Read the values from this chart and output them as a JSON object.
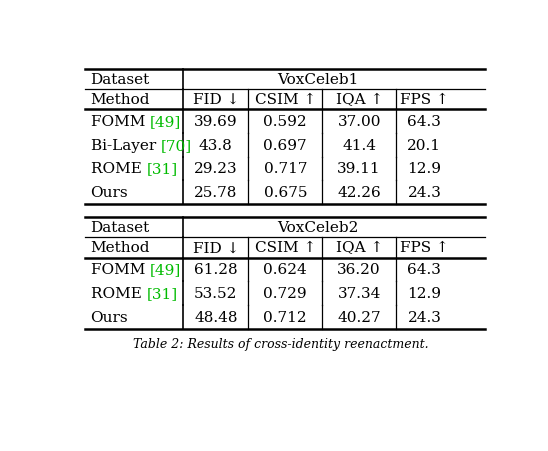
{
  "title": "Table 2: Results of cross-identity reenactment.",
  "background_color": "#ffffff",
  "table1": {
    "dataset": "VoxCeleb1",
    "rows": [
      [
        "FOMM ",
        "[49]",
        "39.69",
        "0.592",
        "37.00",
        "64.3"
      ],
      [
        "Bi-Layer ",
        "[70]",
        "43.8",
        "0.697",
        "41.4",
        "20.1"
      ],
      [
        "ROME ",
        "[31]",
        "29.23",
        "0.717",
        "39.11",
        "12.9"
      ],
      [
        "Ours",
        "",
        "25.78",
        "0.675",
        "42.26",
        "24.3"
      ]
    ]
  },
  "table2": {
    "dataset": "VoxCeleb2",
    "rows": [
      [
        "FOMM ",
        "[49]",
        "61.28",
        "0.624",
        "36.20",
        "64.3"
      ],
      [
        "ROME ",
        "[31]",
        "53.52",
        "0.729",
        "37.34",
        "12.9"
      ],
      [
        "Ours",
        "",
        "48.48",
        "0.712",
        "40.27",
        "24.3"
      ]
    ]
  },
  "headers": [
    "Method",
    "FID ↓",
    "CSIM ↑",
    "IQA ↑",
    "FPS ↑"
  ],
  "ref_color": "#00bb00",
  "text_color": "#000000",
  "font_size": 11.0,
  "caption": "Table 2: Results of cross-identity reenactment."
}
